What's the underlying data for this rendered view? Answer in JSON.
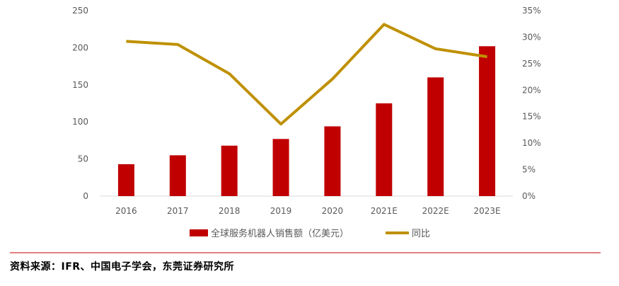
{
  "chart_data": {
    "type": "bar",
    "categories": [
      "2016",
      "2017",
      "2018",
      "2019",
      "2020",
      "2021E",
      "2022E",
      "2023E"
    ],
    "series": [
      {
        "name": "全球服务机器人销售额（亿美元）",
        "type": "bar",
        "axis": "left",
        "values": [
          43,
          55,
          68,
          77,
          94,
          125,
          160,
          202
        ]
      },
      {
        "name": "同比",
        "type": "line",
        "axis": "right",
        "values": [
          29.2,
          28.6,
          23.1,
          13.6,
          22.1,
          32.4,
          27.8,
          26.3
        ]
      }
    ],
    "y_left": {
      "ylim": [
        0,
        250
      ],
      "ticks": [
        "0",
        "50",
        "100",
        "150",
        "200",
        "250"
      ]
    },
    "y_right": {
      "ylim": [
        0,
        35
      ],
      "ticks": [
        "0%",
        "5%",
        "10%",
        "15%",
        "20%",
        "25%",
        "30%",
        "35%"
      ]
    },
    "grid": false,
    "legend_position": "bottom",
    "colors": {
      "bar": "#C00000",
      "line": "#BF9000",
      "axis": "#D9D9D9",
      "separator": "#C00000"
    }
  },
  "source_text": "资料来源：IFR、中国电子学会，东莞证券研究所"
}
